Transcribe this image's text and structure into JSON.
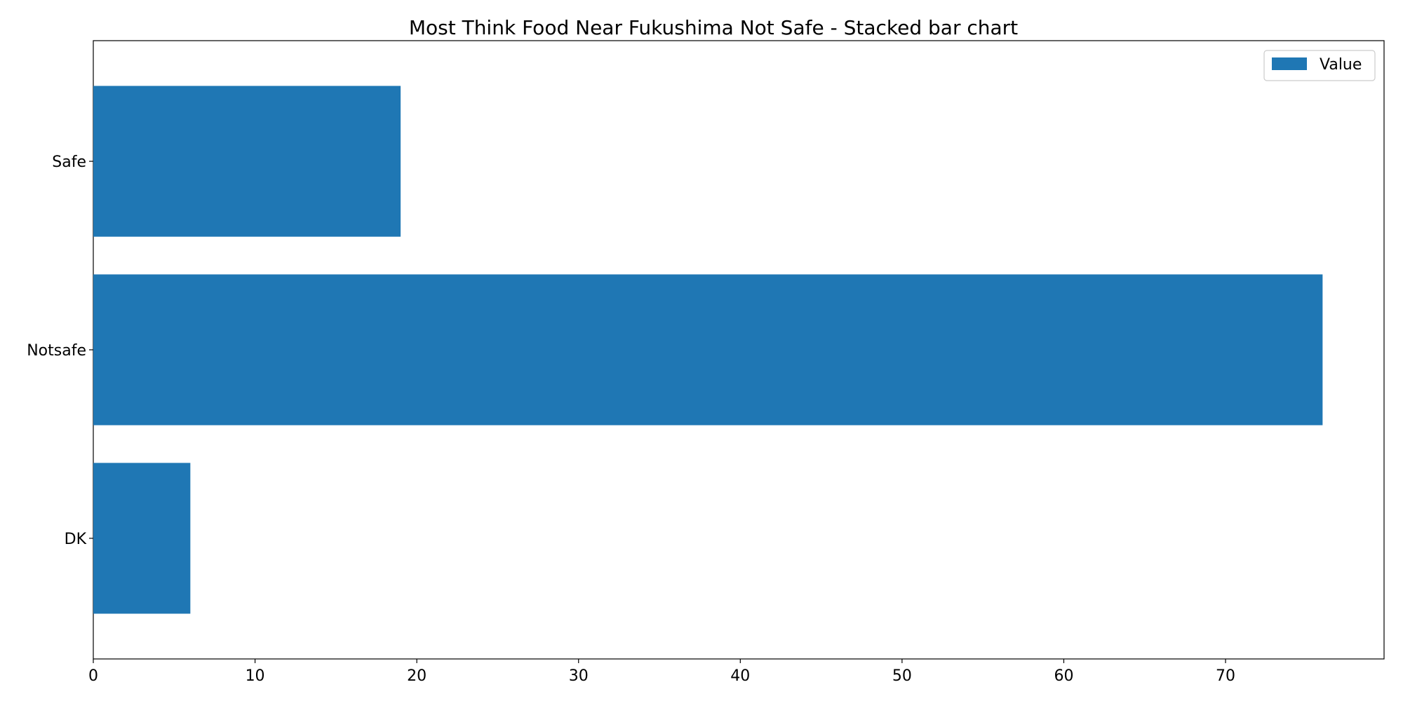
{
  "chart_data": {
    "type": "bar",
    "orientation": "horizontal",
    "title": "Most Think Food Near Fukushima Not Safe  - Stacked bar chart",
    "categories": [
      "DK",
      "Notsafe",
      "Safe"
    ],
    "series": [
      {
        "name": "Value",
        "values": [
          6,
          76,
          19
        ],
        "color": "#1f77b4"
      }
    ],
    "xlim": [
      0,
      79.8
    ],
    "xticks": [
      0,
      10,
      20,
      30,
      40,
      50,
      60,
      70
    ],
    "grid": false,
    "legend_position": "top-right"
  }
}
